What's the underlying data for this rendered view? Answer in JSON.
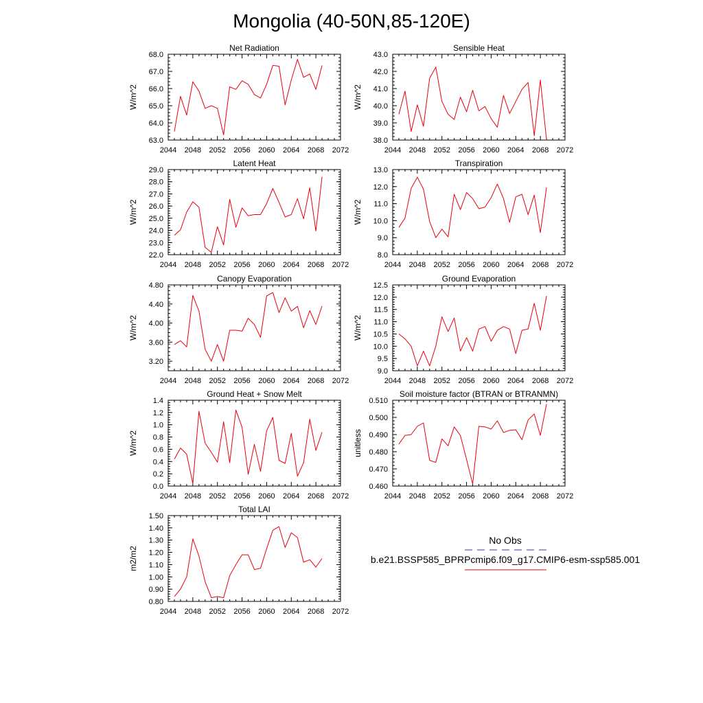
{
  "title": "Mongolia (40-50N,85-120E)",
  "colors": {
    "model_line": "#e8000b",
    "obs_line": "#3a3aa0"
  },
  "legend": {
    "obs_label": "No Obs",
    "model_label": "b.e21.BSSP585_BPRPcmip6.f09_g17.CMIP6-esm-ssp585.001"
  },
  "chart_data": [
    {
      "type": "line",
      "title": "Net Radiation",
      "ylabel": "W/m^2",
      "xlim": [
        2044,
        2072
      ],
      "ylim": [
        63.0,
        68.0
      ],
      "x_ticks": [
        "2044",
        "2048",
        "2052",
        "2056",
        "2060",
        "2064",
        "2068",
        "2072"
      ],
      "y_ticks": [
        "63.0",
        "64.0",
        "65.0",
        "66.0",
        "67.0",
        "68.0"
      ],
      "x": [
        2045,
        2046,
        2047,
        2048,
        2049,
        2050,
        2051,
        2052,
        2053,
        2054,
        2055,
        2056,
        2057,
        2058,
        2059,
        2060,
        2061,
        2062,
        2063,
        2064,
        2065,
        2066,
        2067,
        2068,
        2069
      ],
      "values": [
        63.5,
        65.55,
        64.45,
        66.4,
        65.85,
        64.85,
        65.0,
        64.85,
        63.3,
        66.1,
        65.95,
        66.45,
        66.25,
        65.65,
        65.45,
        66.25,
        67.35,
        67.3,
        65.05,
        66.5,
        67.7,
        66.65,
        66.85,
        65.95,
        67.35
      ]
    },
    {
      "type": "line",
      "title": "Sensible Heat",
      "ylabel": "W/m^2",
      "xlim": [
        2044,
        2072
      ],
      "ylim": [
        38.0,
        43.0
      ],
      "x_ticks": [
        "2044",
        "2048",
        "2052",
        "2056",
        "2060",
        "2064",
        "2068",
        "2072"
      ],
      "y_ticks": [
        "38.0",
        "39.0",
        "40.0",
        "41.0",
        "42.0",
        "43.0"
      ],
      "x": [
        2045,
        2046,
        2047,
        2048,
        2049,
        2050,
        2051,
        2052,
        2053,
        2054,
        2055,
        2056,
        2057,
        2058,
        2059,
        2060,
        2061,
        2062,
        2063,
        2064,
        2065,
        2066,
        2067,
        2068,
        2069
      ],
      "values": [
        39.5,
        40.85,
        38.5,
        40.05,
        38.8,
        41.6,
        42.25,
        40.25,
        39.5,
        39.2,
        40.5,
        39.65,
        40.9,
        39.7,
        39.95,
        39.25,
        38.75,
        40.6,
        39.55,
        40.25,
        40.95,
        41.35,
        38.25,
        41.5,
        38.0
      ]
    },
    {
      "type": "line",
      "title": "Latent Heat",
      "ylabel": "W/m^2",
      "xlim": [
        2044,
        2072
      ],
      "ylim": [
        22.0,
        29.0
      ],
      "x_ticks": [
        "2044",
        "2048",
        "2052",
        "2056",
        "2060",
        "2064",
        "2068",
        "2072"
      ],
      "y_ticks": [
        "22.0",
        "23.0",
        "24.0",
        "25.0",
        "26.0",
        "27.0",
        "28.0",
        "29.0"
      ],
      "x": [
        2045,
        2046,
        2047,
        2048,
        2049,
        2050,
        2051,
        2052,
        2053,
        2054,
        2055,
        2056,
        2057,
        2058,
        2059,
        2060,
        2061,
        2062,
        2063,
        2064,
        2065,
        2066,
        2067,
        2068,
        2069
      ],
      "values": [
        23.6,
        24.05,
        25.5,
        26.35,
        25.9,
        22.6,
        22.2,
        24.3,
        22.8,
        26.55,
        24.25,
        25.85,
        25.2,
        25.3,
        25.3,
        26.2,
        27.45,
        26.3,
        25.1,
        25.3,
        26.6,
        24.95,
        27.5,
        23.95,
        28.4
      ]
    },
    {
      "type": "line",
      "title": "Transpiration",
      "ylabel": "W/m^2",
      "xlim": [
        2044,
        2072
      ],
      "ylim": [
        8.0,
        13.0
      ],
      "x_ticks": [
        "2044",
        "2048",
        "2052",
        "2056",
        "2060",
        "2064",
        "2068",
        "2072"
      ],
      "y_ticks": [
        "8.0",
        "9.0",
        "10.0",
        "11.0",
        "12.0",
        "13.0"
      ],
      "x": [
        2045,
        2046,
        2047,
        2048,
        2049,
        2050,
        2051,
        2052,
        2053,
        2054,
        2055,
        2056,
        2057,
        2058,
        2059,
        2060,
        2061,
        2062,
        2063,
        2064,
        2065,
        2066,
        2067,
        2068,
        2069
      ],
      "values": [
        9.6,
        10.15,
        11.9,
        12.55,
        11.85,
        9.95,
        9.0,
        9.5,
        9.05,
        11.55,
        10.65,
        11.65,
        11.3,
        10.7,
        10.8,
        11.35,
        12.15,
        11.3,
        9.9,
        11.4,
        11.55,
        10.35,
        11.5,
        9.3,
        11.95
      ]
    },
    {
      "type": "line",
      "title": "Canopy Evaporation",
      "ylabel": "W/m^2",
      "xlim": [
        2044,
        2072
      ],
      "ylim": [
        3.0,
        4.8
      ],
      "x_ticks": [
        "2044",
        "2048",
        "2052",
        "2056",
        "2060",
        "2064",
        "2068",
        "2072"
      ],
      "y_ticks": [
        "3.20",
        "3.60",
        "4.00",
        "4.40",
        "4.80"
      ],
      "x": [
        2045,
        2046,
        2047,
        2048,
        2049,
        2050,
        2051,
        2052,
        2053,
        2054,
        2055,
        2056,
        2057,
        2058,
        2059,
        2060,
        2061,
        2062,
        2063,
        2064,
        2065,
        2066,
        2067,
        2068,
        2069
      ],
      "values": [
        3.55,
        3.63,
        3.5,
        4.58,
        4.25,
        3.45,
        3.2,
        3.55,
        3.2,
        3.85,
        3.85,
        3.83,
        4.1,
        3.97,
        3.7,
        4.57,
        4.64,
        4.22,
        4.53,
        4.25,
        4.35,
        3.9,
        4.26,
        3.97,
        4.36
      ]
    },
    {
      "type": "line",
      "title": "Ground Evaporation",
      "ylabel": "W/m^2",
      "xlim": [
        2044,
        2072
      ],
      "ylim": [
        9.0,
        12.5
      ],
      "x_ticks": [
        "2044",
        "2048",
        "2052",
        "2056",
        "2060",
        "2064",
        "2068",
        "2072"
      ],
      "y_ticks": [
        "9.0",
        "9.5",
        "10.0",
        "10.5",
        "11.0",
        "11.5",
        "12.0",
        "12.5"
      ],
      "x": [
        2045,
        2046,
        2047,
        2048,
        2049,
        2050,
        2051,
        2052,
        2053,
        2054,
        2055,
        2056,
        2057,
        2058,
        2059,
        2060,
        2061,
        2062,
        2063,
        2064,
        2065,
        2066,
        2067,
        2068,
        2069
      ],
      "values": [
        10.5,
        10.3,
        10.0,
        9.2,
        9.8,
        9.2,
        10.0,
        11.2,
        10.6,
        11.15,
        9.8,
        10.35,
        9.8,
        10.7,
        10.8,
        10.2,
        10.65,
        10.8,
        10.7,
        9.7,
        10.65,
        10.7,
        11.75,
        10.65,
        12.05
      ]
    },
    {
      "type": "line",
      "title": "Ground Heat + Snow Melt",
      "ylabel": "W/m^2",
      "xlim": [
        2044,
        2072
      ],
      "ylim": [
        0.0,
        1.4
      ],
      "x_ticks": [
        "2044",
        "2048",
        "2052",
        "2056",
        "2060",
        "2064",
        "2068",
        "2072"
      ],
      "y_ticks": [
        "0.0",
        "0.2",
        "0.4",
        "0.6",
        "0.8",
        "1.0",
        "1.2",
        "1.4"
      ],
      "x": [
        2045,
        2046,
        2047,
        2048,
        2049,
        2050,
        2051,
        2052,
        2053,
        2054,
        2055,
        2056,
        2057,
        2058,
        2059,
        2060,
        2061,
        2062,
        2063,
        2064,
        2065,
        2066,
        2067,
        2068,
        2069
      ],
      "values": [
        0.44,
        0.62,
        0.52,
        0.04,
        1.22,
        0.7,
        0.55,
        0.39,
        1.05,
        0.38,
        1.24,
        0.96,
        0.19,
        0.68,
        0.24,
        0.9,
        1.12,
        0.42,
        0.37,
        0.86,
        0.16,
        0.38,
        1.09,
        0.58,
        0.88
      ]
    },
    {
      "type": "line",
      "title": "Soil moisture factor (BTRAN or BTRANMN)",
      "ylabel": "unitless",
      "xlim": [
        2044,
        2072
      ],
      "ylim": [
        0.46,
        0.51
      ],
      "x_ticks": [
        "2044",
        "2048",
        "2052",
        "2056",
        "2060",
        "2064",
        "2068",
        "2072"
      ],
      "y_ticks": [
        "0.460",
        "0.470",
        "0.480",
        "0.490",
        "0.500",
        "0.510"
      ],
      "x": [
        2045,
        2046,
        2047,
        2048,
        2049,
        2050,
        2051,
        2052,
        2053,
        2054,
        2055,
        2056,
        2057,
        2058,
        2059,
        2060,
        2061,
        2062,
        2063,
        2064,
        2065,
        2066,
        2067,
        2068,
        2069
      ],
      "values": [
        0.4845,
        0.4895,
        0.49,
        0.4948,
        0.4968,
        0.475,
        0.4738,
        0.4875,
        0.4835,
        0.4945,
        0.4895,
        0.4755,
        0.4612,
        0.4948,
        0.4945,
        0.4932,
        0.498,
        0.4912,
        0.4925,
        0.4928,
        0.487,
        0.4985,
        0.502,
        0.4895,
        0.5078
      ]
    },
    {
      "type": "line",
      "title": "Total LAI",
      "ylabel": "m2/m2",
      "xlim": [
        2044,
        2072
      ],
      "ylim": [
        0.8,
        1.5
      ],
      "x_ticks": [
        "2044",
        "2048",
        "2052",
        "2056",
        "2060",
        "2064",
        "2068",
        "2072"
      ],
      "y_ticks": [
        "0.80",
        "0.90",
        "1.00",
        "1.10",
        "1.20",
        "1.30",
        "1.40",
        "1.50"
      ],
      "x": [
        2045,
        2046,
        2047,
        2048,
        2049,
        2050,
        2051,
        2052,
        2053,
        2054,
        2055,
        2056,
        2057,
        2058,
        2059,
        2060,
        2061,
        2062,
        2063,
        2064,
        2065,
        2066,
        2067,
        2068,
        2069
      ],
      "values": [
        0.84,
        0.9,
        1.0,
        1.31,
        1.17,
        0.96,
        0.83,
        0.84,
        0.83,
        1.01,
        1.1,
        1.18,
        1.18,
        1.06,
        1.07,
        1.23,
        1.38,
        1.41,
        1.24,
        1.36,
        1.32,
        1.12,
        1.14,
        1.08,
        1.15
      ]
    }
  ]
}
